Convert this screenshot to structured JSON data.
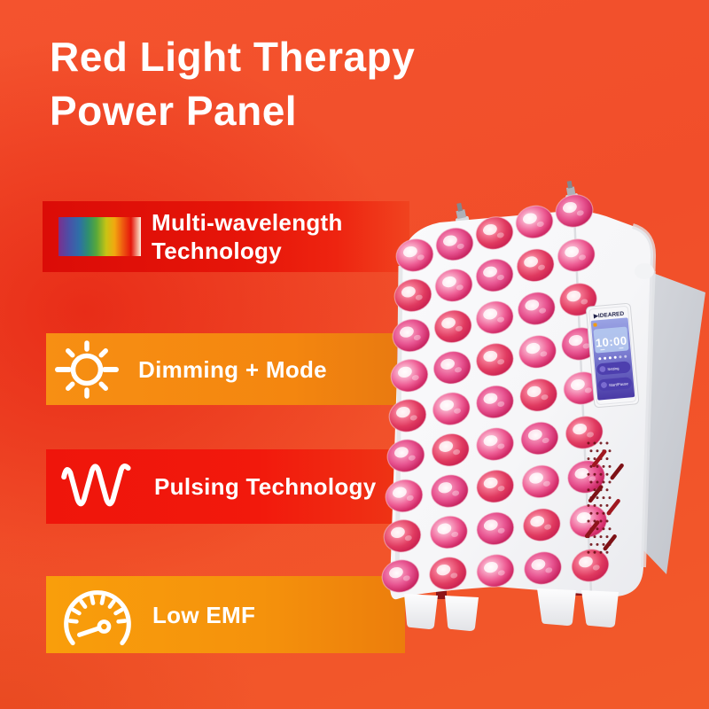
{
  "title": {
    "line1": "Red Light Therapy",
    "line2": "Power Panel"
  },
  "features": [
    {
      "name": "multi-wavelength-technology",
      "icon": "spectrum-icon",
      "lines": [
        "Multi-wavelength",
        "Technology"
      ]
    },
    {
      "name": "dimming-mode",
      "icon": "sun-dimming-icon",
      "lines": [
        "Dimming + Mode"
      ]
    },
    {
      "name": "pulsing-technology",
      "icon": "pulse-wave-icon",
      "lines": [
        "Pulsing Technology"
      ]
    },
    {
      "name": "low-emf",
      "icon": "gauge-icon",
      "lines": [
        "Low EMF"
      ]
    }
  ],
  "device": {
    "brand": "IDEARED",
    "screen": {
      "time": "10:00",
      "button1": "Setting",
      "button2": "Start/Pause"
    }
  },
  "colors": {
    "background": "#F4512B",
    "banner_red": "#E5140A",
    "banner_orange": "#F68A15",
    "banner_red2": "#F0170C",
    "banner_amber": "#F89A0C",
    "led_pink": "#E8457F",
    "screen_purple": "#5B4FB5",
    "vent_dot": "#6E1016",
    "vent_slash": "#7E1116"
  }
}
